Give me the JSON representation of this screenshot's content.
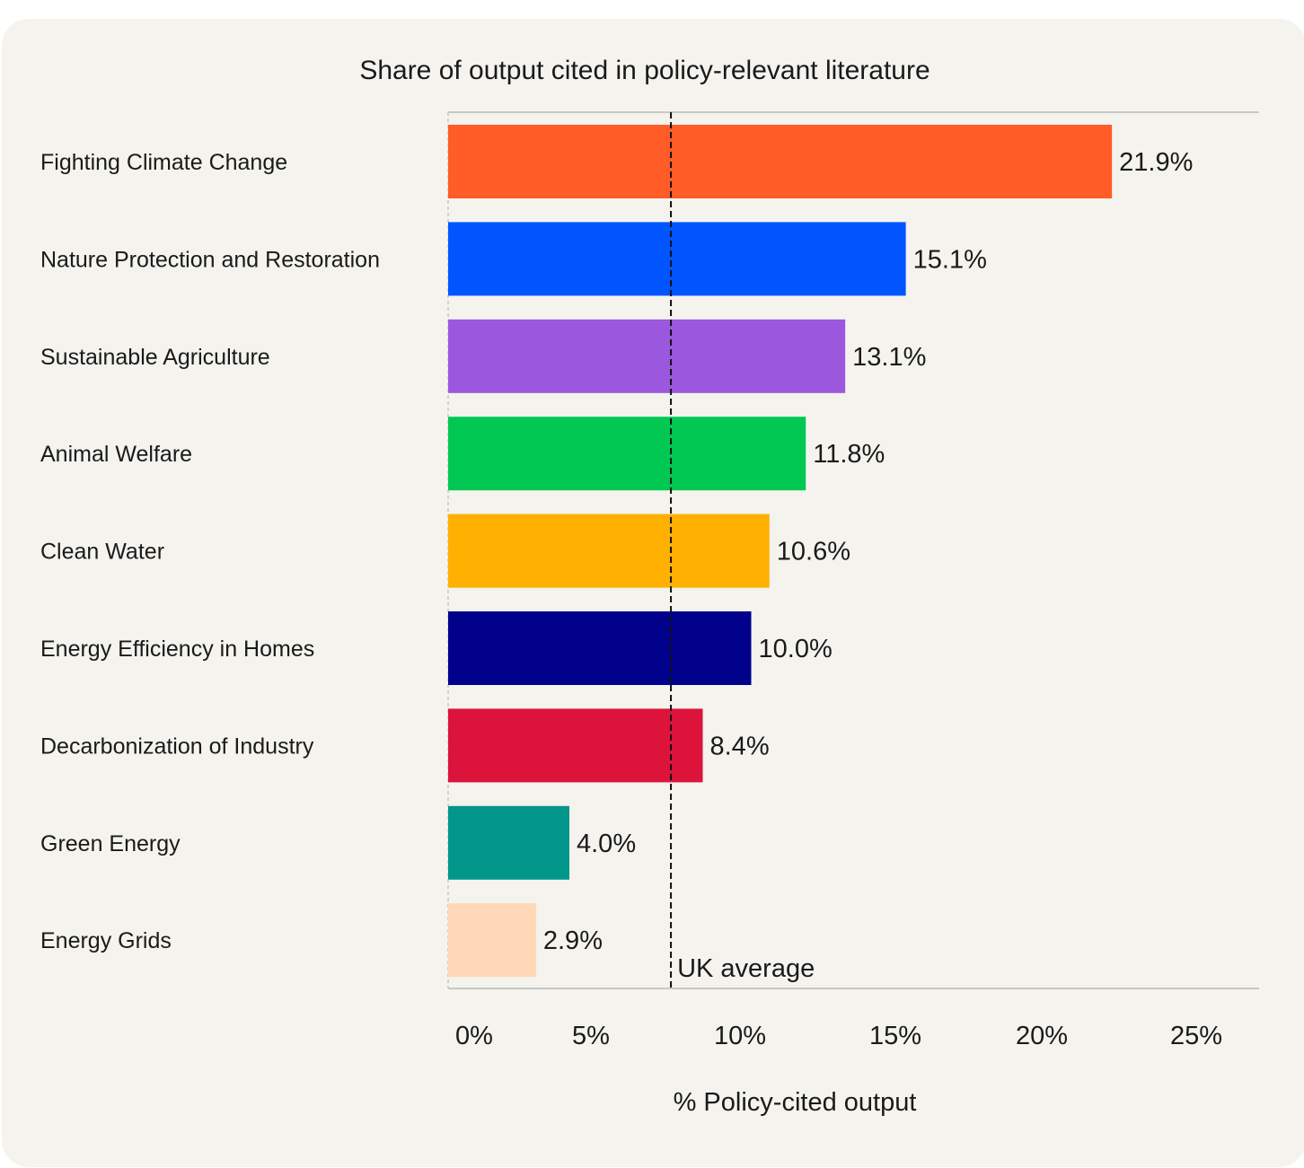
{
  "chart_data": {
    "type": "bar",
    "orientation": "horizontal",
    "title": "Share of output cited in policy-relevant literature",
    "xlabel": "% Policy-cited output",
    "ylabel": "",
    "xlim": [
      0,
      25
    ],
    "x_ticks": [
      "0%",
      "5%",
      "10%",
      "15%",
      "20%",
      "25%"
    ],
    "categories": [
      "Fighting Climate Change",
      "Nature Protection and Restoration",
      "Sustainable Agriculture",
      "Animal Welfare",
      "Clean Water",
      "Energy Efficiency in Homes",
      "Decarbonization of Industry",
      "Green Energy",
      "Energy Grids"
    ],
    "values": [
      21.9,
      15.1,
      13.1,
      11.8,
      10.6,
      10.0,
      8.4,
      4.0,
      2.9
    ],
    "value_labels": [
      "21.9%",
      "15.1%",
      "13.1%",
      "11.8%",
      "10.6%",
      "10.0%",
      "8.4%",
      "4.0%",
      "2.9%"
    ],
    "colors": [
      "#ff5c28",
      "#0055ff",
      "#9b57de",
      "#00c853",
      "#ffb000",
      "#00008b",
      "#dc143c",
      "#00968a",
      "#ffd8b8"
    ],
    "reference_line": {
      "label": "UK average",
      "value": 7.35,
      "style": "dashed"
    },
    "grid": false,
    "legend": "none"
  }
}
